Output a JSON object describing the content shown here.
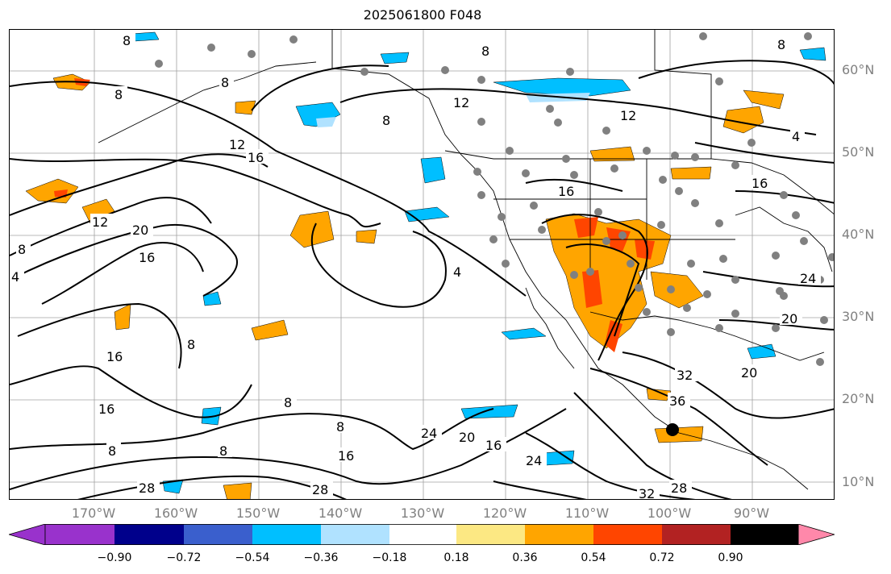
{
  "title": "2025061800 F048",
  "lat_labels": [
    {
      "text": "60°N"
    },
    {
      "text": "50°N"
    },
    {
      "text": "40°N"
    },
    {
      "text": "30°N"
    },
    {
      "text": "20°N"
    },
    {
      "text": "10°N"
    }
  ],
  "lon_labels": [
    {
      "text": "170°W"
    },
    {
      "text": "160°W"
    },
    {
      "text": "150°W"
    },
    {
      "text": "140°W"
    },
    {
      "text": "130°W"
    },
    {
      "text": "120°W"
    },
    {
      "text": "110°W"
    },
    {
      "text": "100°W"
    },
    {
      "text": "90°W"
    }
  ],
  "colorbar": {
    "colors": [
      "#9932cc",
      "#00008b",
      "#3a5fcd",
      "#00bfff",
      "#b0e2ff",
      "#ffffff",
      "#fce883",
      "#ffa500",
      "#ff4500",
      "#b22222",
      "#ff88aa"
    ],
    "tick_labels": [
      "−0.90",
      "−0.72",
      "−0.54",
      "−0.36",
      "−0.18",
      "0.18",
      "0.36",
      "0.54",
      "0.72",
      "0.90"
    ]
  },
  "contour_labels": [
    "8",
    "12",
    "16",
    "20",
    "4",
    "24",
    "28",
    "32",
    "36"
  ],
  "map": {
    "lon_range": [
      -178,
      -77
    ],
    "lat_range": [
      8,
      65
    ],
    "contour_color": "#000000",
    "gridline_color": "#a0a0a0",
    "station_marker_color": "#808080"
  }
}
